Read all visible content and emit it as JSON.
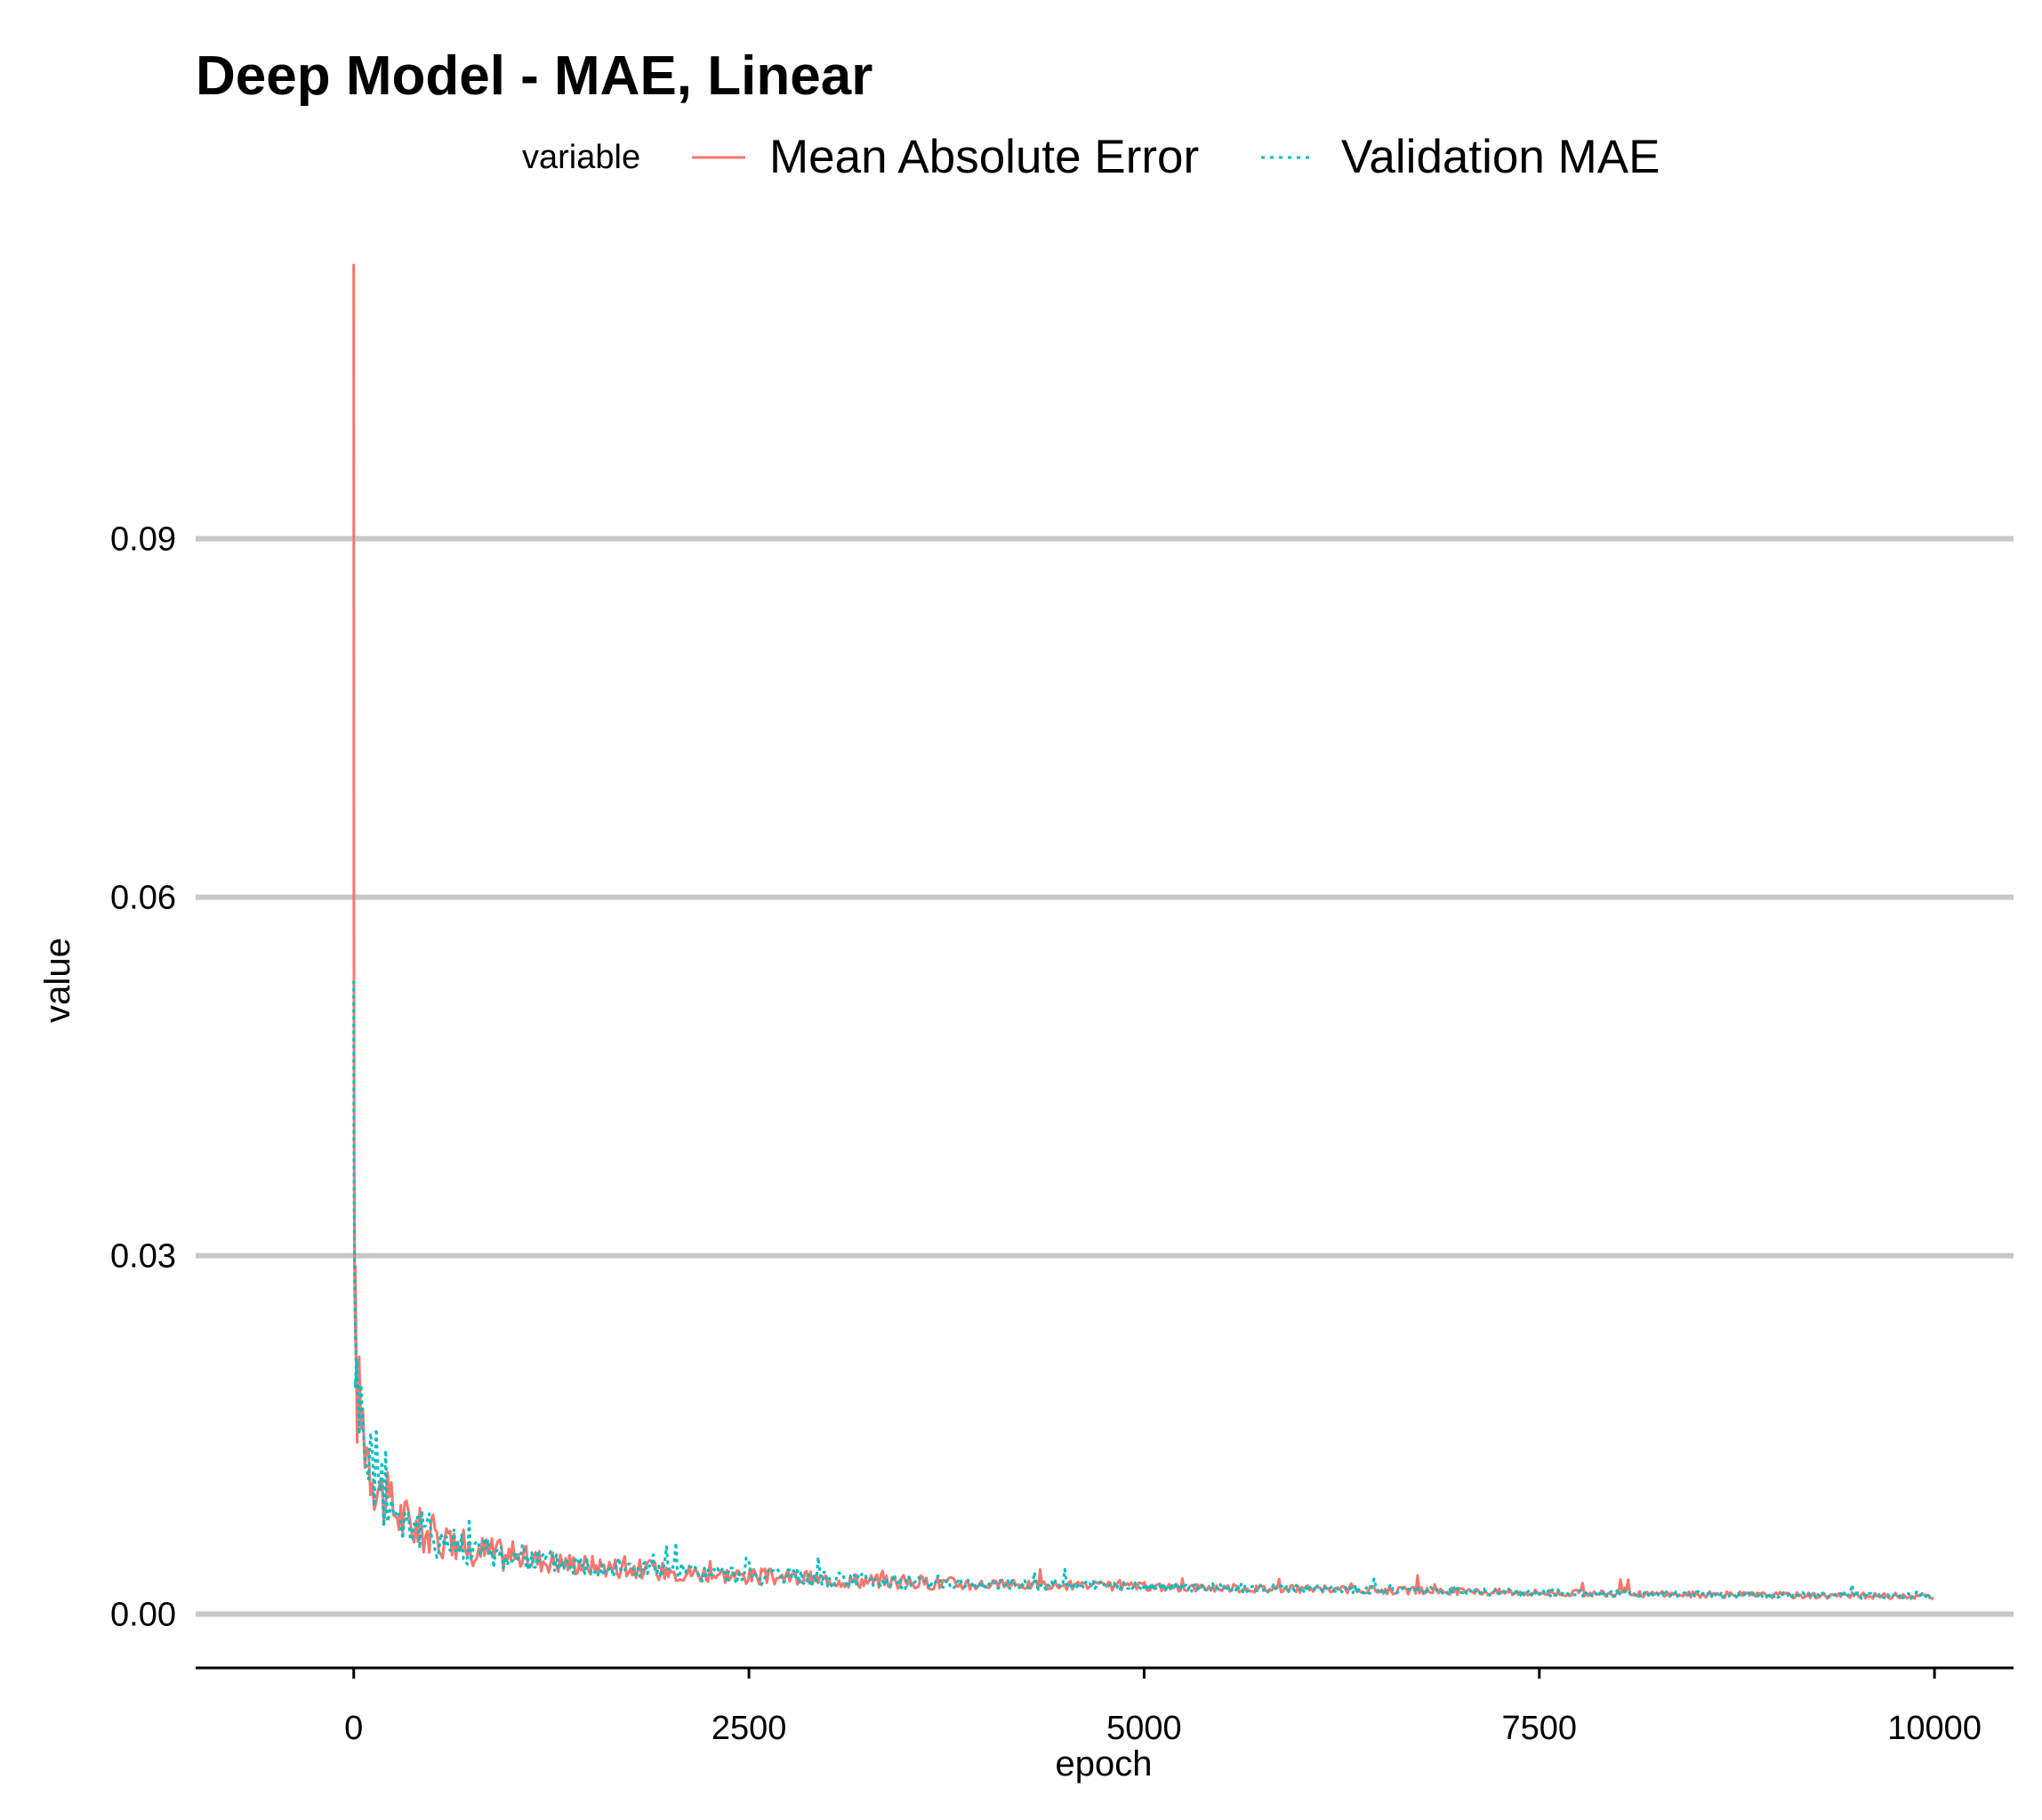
{
  "chart_data": {
    "type": "line",
    "title": "Deep Model - MAE, Linear",
    "xlabel": "epoch",
    "ylabel": "value",
    "xlim": [
      -1000,
      10500
    ],
    "ylim": [
      -0.0045,
      0.1135
    ],
    "x_ticks": [
      0,
      2500,
      5000,
      7500,
      10000
    ],
    "x_tick_labels": [
      "0",
      "2500",
      "5000",
      "7500",
      "10000"
    ],
    "y_ticks": [
      0.0,
      0.03,
      0.06,
      0.09
    ],
    "y_tick_labels": [
      "0.00",
      "0.03",
      "0.06",
      "0.09"
    ],
    "grid": "horizontal-major",
    "legend": {
      "title": "variable",
      "placement": "top"
    },
    "series": [
      {
        "name": "Mean Absolute Error",
        "color": "#F8766D",
        "linetype": "solid",
        "x": [
          0,
          1,
          3,
          6,
          10,
          15,
          20,
          30,
          40,
          60,
          80,
          100,
          150,
          200,
          300,
          400,
          500,
          700,
          1000,
          1500,
          2000,
          2500,
          3000,
          3500,
          4000,
          5000,
          6000,
          7000,
          8000,
          9000,
          10000
        ],
        "y": [
          0.113,
          0.058,
          0.036,
          0.028,
          0.024,
          0.021,
          0.019,
          0.018,
          0.017,
          0.016,
          0.015,
          0.013,
          0.011,
          0.0095,
          0.0082,
          0.0072,
          0.0066,
          0.0056,
          0.0048,
          0.0041,
          0.0036,
          0.0032,
          0.0029,
          0.0027,
          0.0025,
          0.0023,
          0.0021,
          0.0019,
          0.0017,
          0.0016,
          0.0015
        ]
      },
      {
        "name": "Validation MAE",
        "color": "#00BFC4",
        "linetype": "dotted",
        "x": [
          0,
          1,
          3,
          6,
          10,
          15,
          20,
          30,
          40,
          60,
          80,
          100,
          150,
          200,
          300,
          400,
          500,
          700,
          1000,
          1500,
          2000,
          2500,
          3000,
          3500,
          4000,
          5000,
          6000,
          7000,
          8000,
          9000,
          10000
        ],
        "y": [
          0.053,
          0.04,
          0.033,
          0.027,
          0.024,
          0.021,
          0.019,
          0.018,
          0.017,
          0.016,
          0.015,
          0.013,
          0.011,
          0.0095,
          0.0082,
          0.0072,
          0.0066,
          0.0056,
          0.0048,
          0.0041,
          0.0036,
          0.0032,
          0.0029,
          0.0027,
          0.0025,
          0.0023,
          0.0021,
          0.0019,
          0.0017,
          0.0016,
          0.0015
        ]
      }
    ]
  }
}
